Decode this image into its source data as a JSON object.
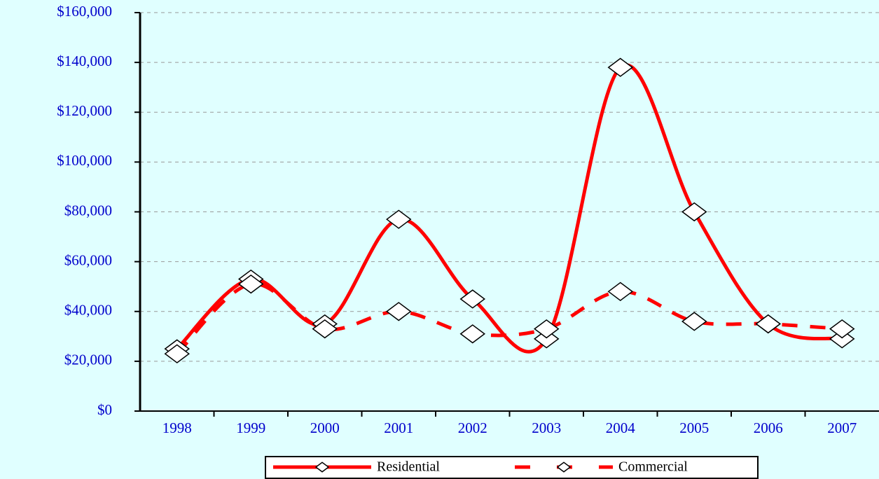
{
  "chart_data": {
    "type": "line",
    "categories": [
      "1998",
      "1999",
      "2000",
      "2001",
      "2002",
      "2003",
      "2004",
      "2005",
      "2006",
      "2007"
    ],
    "series": [
      {
        "name": "Residential",
        "color": "#ff0000",
        "dash": false,
        "values": [
          25000,
          53000,
          35000,
          77000,
          45000,
          29000,
          138000,
          80000,
          35000,
          29000
        ]
      },
      {
        "name": "Commercial",
        "color": "#ff0000",
        "dash": true,
        "values": [
          23000,
          51000,
          33000,
          40000,
          31000,
          33000,
          48000,
          36000,
          35000,
          33000
        ]
      }
    ],
    "ylim": [
      0,
      160000
    ],
    "yticks": [
      {
        "value": 0,
        "label": "$0"
      },
      {
        "value": 20000,
        "label": "$20,000"
      },
      {
        "value": 40000,
        "label": "$40,000"
      },
      {
        "value": 60000,
        "label": "$60,000"
      },
      {
        "value": 80000,
        "label": "$80,000"
      },
      {
        "value": 100000,
        "label": "$100,000"
      },
      {
        "value": 120000,
        "label": "$120,000"
      },
      {
        "value": 140000,
        "label": "$140,000"
      },
      {
        "value": 160000,
        "label": "$160,000"
      }
    ],
    "grid": true,
    "smooth": true,
    "legend": "bottom"
  }
}
